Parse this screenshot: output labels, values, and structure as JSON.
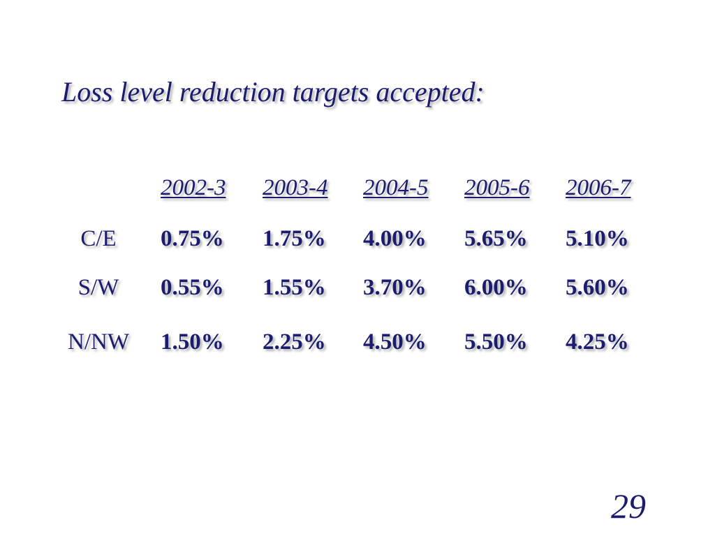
{
  "slide": {
    "title": "Loss level reduction targets accepted:",
    "page_number": "29"
  },
  "table": {
    "years": [
      "2002-3",
      "2003-4",
      "2004-5",
      "2005-6",
      "2006-7"
    ],
    "rows": [
      {
        "region": "C/E",
        "values": [
          "0.75%",
          "1.75%",
          "4.00%",
          "5.65%",
          "5.10%"
        ]
      },
      {
        "region": "S/W",
        "values": [
          "0.55%",
          "1.55%",
          "3.70%",
          "6.00%",
          "5.60%"
        ]
      },
      {
        "region": "N/NW",
        "values": [
          "1.50%",
          "2.25%",
          "4.50%",
          "5.50%",
          "4.25%"
        ]
      }
    ]
  }
}
